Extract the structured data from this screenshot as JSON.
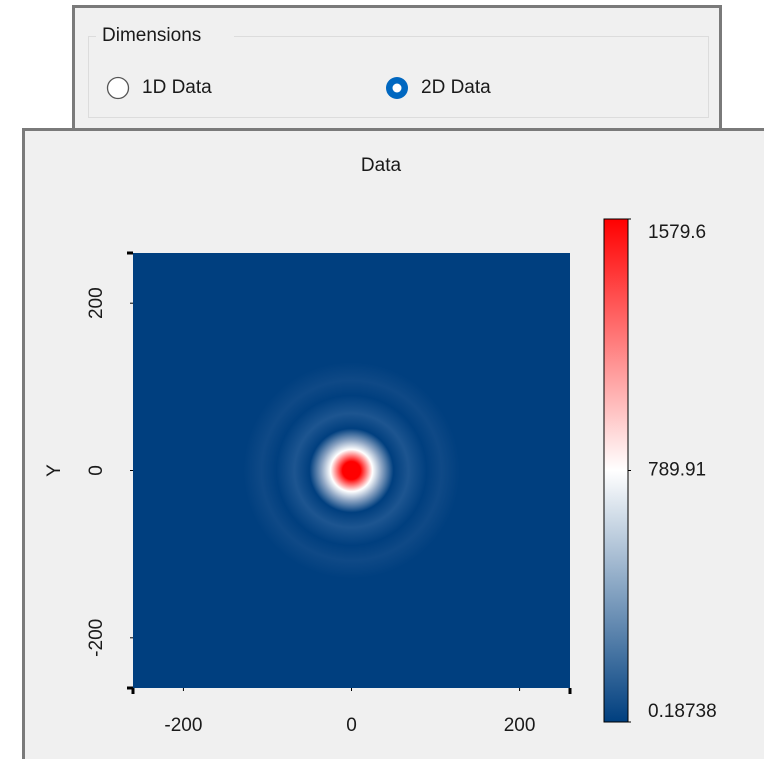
{
  "dimensions": {
    "title": "Dimensions",
    "options": [
      {
        "label": "1D Data",
        "checked": false
      },
      {
        "label": "2D Data",
        "checked": true
      }
    ]
  },
  "chart_data": {
    "type": "heatmap",
    "title": "Data",
    "ylabel": "Y",
    "xlim": [
      -260,
      260
    ],
    "ylim": [
      -260,
      260
    ],
    "xticks": [
      -200,
      0,
      200
    ],
    "yticks": [
      -200,
      0,
      200
    ],
    "zlim": [
      0.18738,
      1579.6
    ],
    "zticks": [
      0.18738,
      789.91,
      1579.6
    ],
    "colormap": [
      "#003f7f",
      "#ffffff",
      "#ff0000"
    ]
  }
}
